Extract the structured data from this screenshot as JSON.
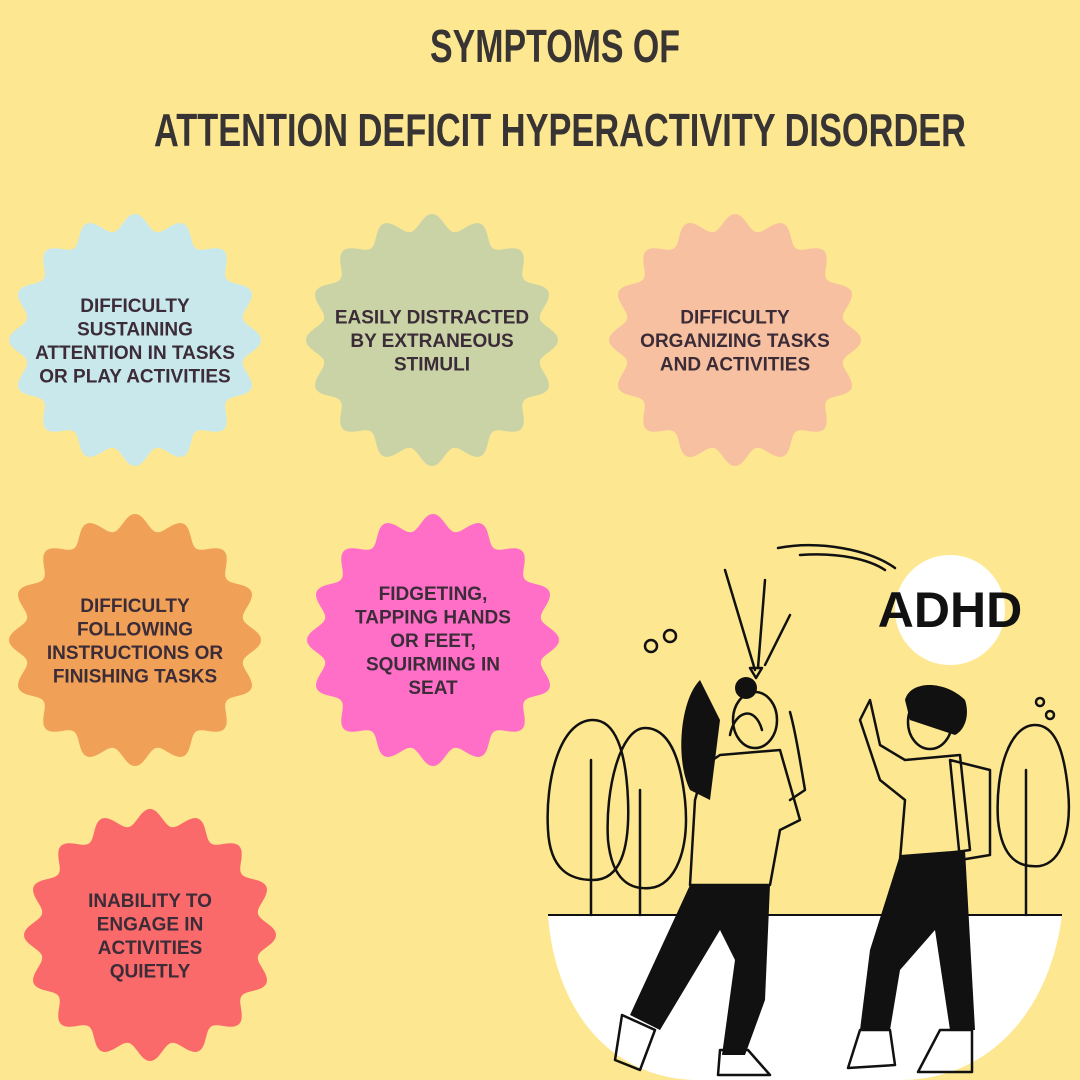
{
  "header": {
    "title_lines": [
      "SYMPTOMS OF",
      "ATTENTION DEFICIT HYPERACTIVITY DISORDER"
    ]
  },
  "symptoms": [
    {
      "lines": [
        "DIFFICULTY",
        "SUSTAINING",
        "ATTENTION IN TASKS",
        "OR PLAY ACTIVITIES"
      ]
    },
    {
      "lines": [
        "EASILY DISTRACTED",
        "BY EXTRANEOUS",
        "STIMULI"
      ]
    },
    {
      "lines": [
        "DIFFICULTY",
        "ORGANIZING TASKS",
        "AND ACTIVITIES"
      ]
    },
    {
      "lines": [
        "DIFFICULTY",
        "FOLLOWING",
        "INSTRUCTIONS OR",
        "FINISHING TASKS"
      ]
    },
    {
      "lines": [
        "FIDGETING,",
        "TAPPING HANDS",
        "OR FEET,",
        "SQUIRMING IN",
        "SEAT"
      ]
    },
    {
      "lines": [
        "INABILITY TO",
        "ENGAGE IN",
        "ACTIVITIES",
        "QUIETLY"
      ]
    }
  ],
  "illustration": {
    "label": "ADHD"
  }
}
